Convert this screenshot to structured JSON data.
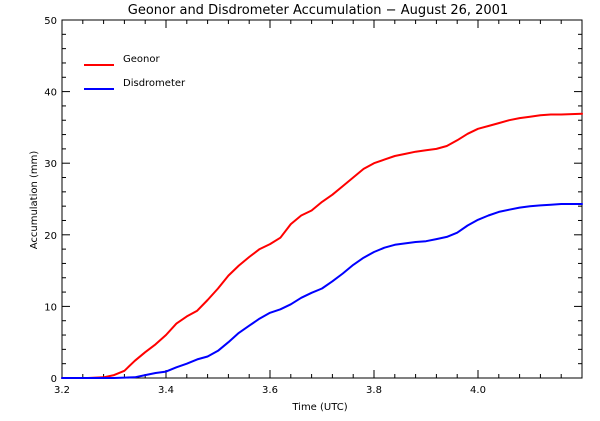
{
  "chart_data": {
    "type": "line",
    "title": "Geonor and Disdrometer Accumulation − August 26, 2001",
    "xlabel": "Time (UTC)",
    "ylabel": "Accumulation (mm)",
    "xlim": [
      3.2,
      4.2
    ],
    "ylim": [
      0,
      50
    ],
    "xticks": [
      3.2,
      3.4,
      3.6,
      3.8,
      4.0
    ],
    "xtick_labels": [
      "3.2",
      "3.4",
      "3.6",
      "3.8",
      "4.0"
    ],
    "yticks": [
      0,
      10,
      20,
      30,
      40,
      50
    ],
    "ytick_labels": [
      "0",
      "10",
      "20",
      "30",
      "40",
      "50"
    ],
    "grid": false,
    "legend_position": "top-left",
    "series": [
      {
        "name": "Geonor",
        "color": "#ff0000",
        "x": [
          3.2,
          3.25,
          3.28,
          3.3,
          3.32,
          3.34,
          3.36,
          3.38,
          3.4,
          3.42,
          3.44,
          3.46,
          3.48,
          3.5,
          3.52,
          3.54,
          3.56,
          3.58,
          3.6,
          3.62,
          3.64,
          3.66,
          3.68,
          3.7,
          3.72,
          3.74,
          3.76,
          3.78,
          3.8,
          3.82,
          3.84,
          3.86,
          3.88,
          3.9,
          3.92,
          3.94,
          3.96,
          3.98,
          4.0,
          4.02,
          4.04,
          4.06,
          4.08,
          4.1,
          4.12,
          4.14,
          4.16,
          4.2
        ],
        "values": [
          0,
          0,
          0.1,
          0.4,
          1.0,
          2.4,
          3.6,
          4.7,
          6.0,
          7.6,
          8.6,
          9.4,
          10.9,
          12.5,
          14.3,
          15.7,
          16.9,
          18.0,
          18.7,
          19.6,
          21.5,
          22.7,
          23.4,
          24.6,
          25.6,
          26.8,
          28.0,
          29.2,
          30.0,
          30.5,
          31.0,
          31.3,
          31.6,
          31.8,
          32.0,
          32.4,
          33.2,
          34.1,
          34.8,
          35.2,
          35.6,
          36.0,
          36.3,
          36.5,
          36.7,
          36.8,
          36.8,
          36.9
        ]
      },
      {
        "name": "Disdrometer",
        "color": "#0000ff",
        "x": [
          3.2,
          3.25,
          3.3,
          3.34,
          3.36,
          3.38,
          3.4,
          3.42,
          3.44,
          3.46,
          3.48,
          3.5,
          3.52,
          3.54,
          3.56,
          3.58,
          3.6,
          3.62,
          3.64,
          3.66,
          3.68,
          3.7,
          3.72,
          3.74,
          3.76,
          3.78,
          3.8,
          3.82,
          3.84,
          3.86,
          3.88,
          3.9,
          3.92,
          3.94,
          3.96,
          3.98,
          4.0,
          4.02,
          4.04,
          4.06,
          4.08,
          4.1,
          4.12,
          4.14,
          4.16,
          4.2
        ],
        "values": [
          0,
          0,
          0,
          0.1,
          0.4,
          0.7,
          0.9,
          1.5,
          2.0,
          2.6,
          3.0,
          3.8,
          5.0,
          6.3,
          7.3,
          8.3,
          9.1,
          9.6,
          10.3,
          11.2,
          11.9,
          12.5,
          13.5,
          14.6,
          15.8,
          16.8,
          17.6,
          18.2,
          18.6,
          18.8,
          19.0,
          19.1,
          19.4,
          19.7,
          20.3,
          21.3,
          22.1,
          22.7,
          23.2,
          23.5,
          23.8,
          24.0,
          24.1,
          24.2,
          24.3,
          24.3
        ]
      }
    ]
  }
}
